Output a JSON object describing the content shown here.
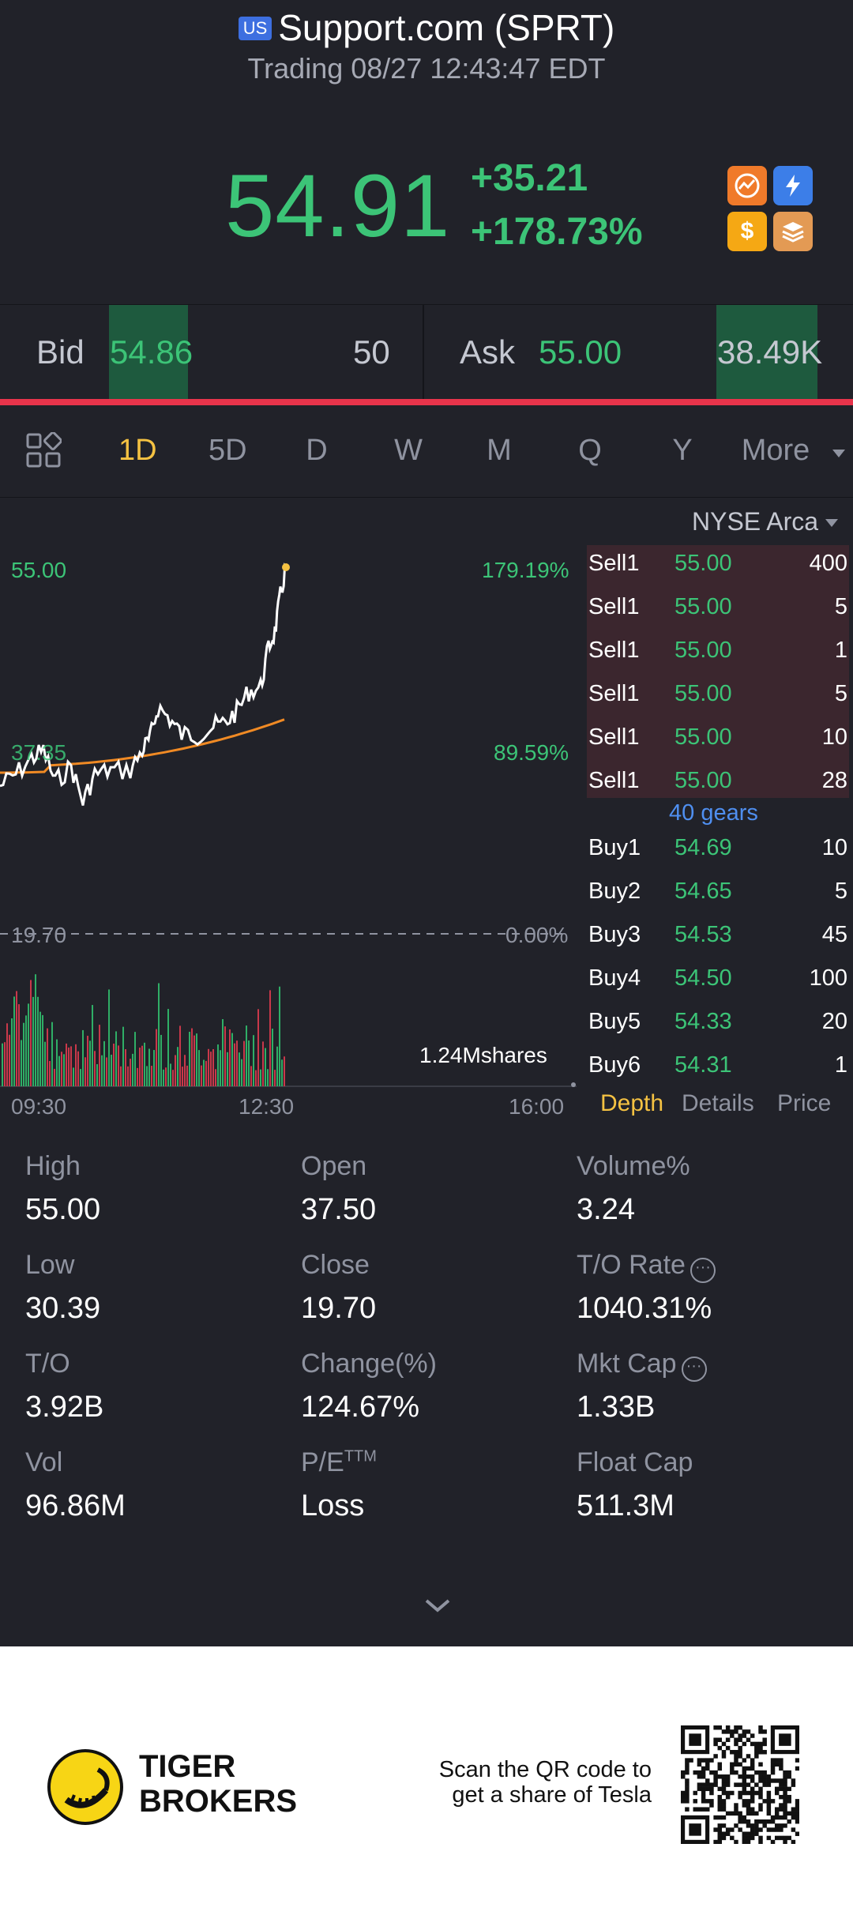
{
  "header": {
    "region_badge": "US",
    "title": "Support.com (SPRT)",
    "status": "Trading 08/27 12:43:47 EDT"
  },
  "quote": {
    "last": "54.91",
    "change": "+35.21",
    "change_pct": "+178.73%"
  },
  "badges": [
    "chart-pattern-icon",
    "lightning-icon",
    "dollar-icon",
    "stack-icon"
  ],
  "bidask": {
    "bid_label": "Bid",
    "bid_price": "54.86",
    "bid_size": "50",
    "ask_label": "Ask",
    "ask_price": "55.00",
    "ask_size": "38.49K"
  },
  "tabs": [
    "1D",
    "5D",
    "D",
    "W",
    "M",
    "Q",
    "Y",
    "More"
  ],
  "active_tab": "1D",
  "chart": {
    "price_high": "55.00",
    "pct_high": "179.19%",
    "price_mid": "37.35",
    "pct_mid": "89.59%",
    "price_base": "19.70",
    "pct_base": "0.00%",
    "volume": "1.24Mshares",
    "time_start": "09:30",
    "time_mid": "12:30",
    "time_end": "16:00"
  },
  "orderbook": {
    "exchange": "NYSE Arca",
    "sell": [
      {
        "level": "Sell1",
        "price": "55.00",
        "qty": "400"
      },
      {
        "level": "Sell1",
        "price": "55.00",
        "qty": "5"
      },
      {
        "level": "Sell1",
        "price": "55.00",
        "qty": "1"
      },
      {
        "level": "Sell1",
        "price": "55.00",
        "qty": "5"
      },
      {
        "level": "Sell1",
        "price": "55.00",
        "qty": "10"
      },
      {
        "level": "Sell1",
        "price": "55.00",
        "qty": "28"
      }
    ],
    "gears": "40 gears",
    "buy": [
      {
        "level": "Buy1",
        "price": "54.69",
        "qty": "10"
      },
      {
        "level": "Buy2",
        "price": "54.65",
        "qty": "5"
      },
      {
        "level": "Buy3",
        "price": "54.53",
        "qty": "45"
      },
      {
        "level": "Buy4",
        "price": "54.50",
        "qty": "100"
      },
      {
        "level": "Buy5",
        "price": "54.33",
        "qty": "20"
      },
      {
        "level": "Buy6",
        "price": "54.31",
        "qty": "1"
      }
    ],
    "tabs": [
      "Depth",
      "Details",
      "Price"
    ]
  },
  "stats": [
    {
      "label": "High",
      "value": "55.00"
    },
    {
      "label": "Open",
      "value": "37.50"
    },
    {
      "label": "Volume%",
      "value": "3.24"
    },
    {
      "label": "Low",
      "value": "30.39"
    },
    {
      "label": "Close",
      "value": "19.70"
    },
    {
      "label": "T/O Rate",
      "value": "1040.31%"
    },
    {
      "label": "T/O",
      "value": "3.92B"
    },
    {
      "label": "Change(%)",
      "value": "124.67%"
    },
    {
      "label": "Mkt Cap",
      "value": "1.33B"
    },
    {
      "label": "Vol",
      "value": "96.86M"
    },
    {
      "label": "P/E",
      "label_sup": "TTM",
      "value": "Loss"
    },
    {
      "label": "Float Cap",
      "value": "511.3M"
    }
  ],
  "footer": {
    "brand_line1": "TIGER",
    "brand_line2": "BROKERS",
    "promo_line1": "Scan the QR code to",
    "promo_line2": "get a share of Tesla"
  },
  "colors": {
    "background": "#212229",
    "up": "#3cc477",
    "accent": "#f5c242",
    "alert_line": "#e8344b",
    "link": "#4f8ff0"
  }
}
